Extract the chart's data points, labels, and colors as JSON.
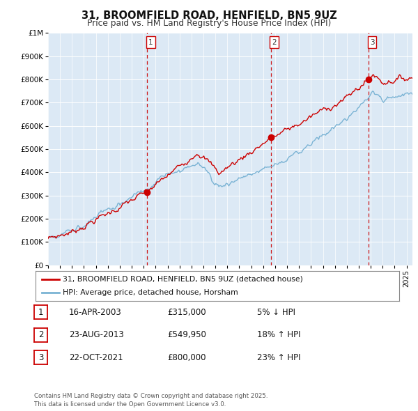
{
  "title": "31, BROOMFIELD ROAD, HENFIELD, BN5 9UZ",
  "subtitle": "Price paid vs. HM Land Registry's House Price Index (HPI)",
  "ylim": [
    0,
    1000000
  ],
  "yticks": [
    0,
    100000,
    200000,
    300000,
    400000,
    500000,
    600000,
    700000,
    800000,
    900000,
    1000000
  ],
  "ytick_labels": [
    "£0",
    "£100K",
    "£200K",
    "£300K",
    "£400K",
    "£500K",
    "£600K",
    "£700K",
    "£800K",
    "£900K",
    "£1M"
  ],
  "hpi_color": "#7ab3d4",
  "sale_color": "#cc0000",
  "vline_color": "#cc0000",
  "background_chart": "#dce9f5",
  "sale_dates": [
    2003.29,
    2013.64,
    2021.81
  ],
  "sale_prices": [
    315000,
    549950,
    800000
  ],
  "sale_labels": [
    "1",
    "2",
    "3"
  ],
  "vline_dates": [
    2003.29,
    2013.64,
    2021.81
  ],
  "legend_sale": "31, BROOMFIELD ROAD, HENFIELD, BN5 9UZ (detached house)",
  "legend_hpi": "HPI: Average price, detached house, Horsham",
  "table_rows": [
    {
      "num": "1",
      "date": "16-APR-2003",
      "price": "£315,000",
      "change": "5% ↓ HPI"
    },
    {
      "num": "2",
      "date": "23-AUG-2013",
      "price": "£549,950",
      "change": "18% ↑ HPI"
    },
    {
      "num": "3",
      "date": "22-OCT-2021",
      "price": "£800,000",
      "change": "23% ↑ HPI"
    }
  ],
  "footer": "Contains HM Land Registry data © Crown copyright and database right 2025.\nThis data is licensed under the Open Government Licence v3.0.",
  "xlim_start": 1995.0,
  "xlim_end": 2025.5
}
